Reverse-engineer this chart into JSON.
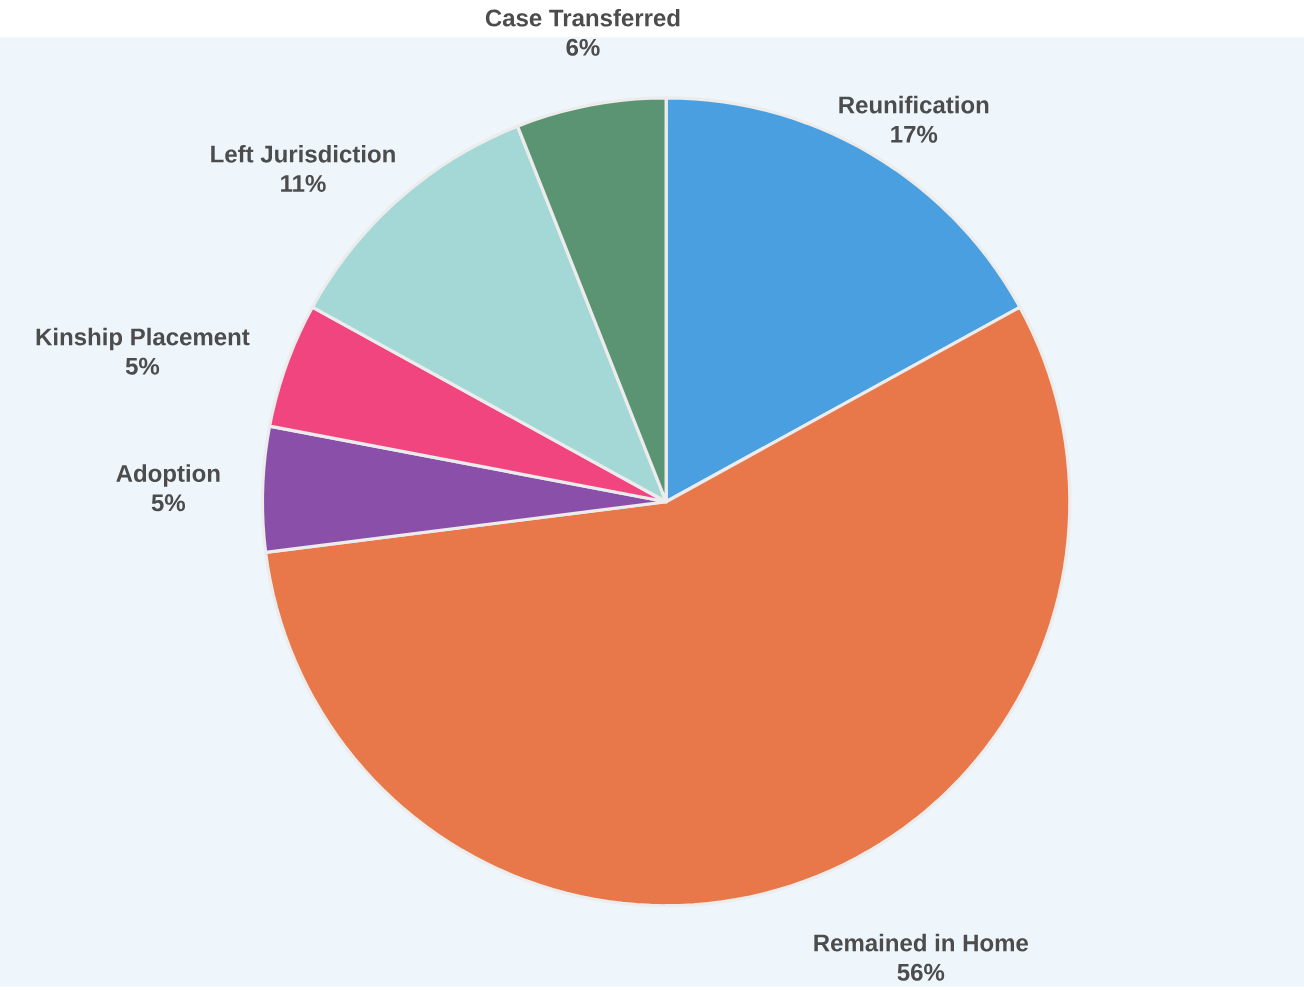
{
  "chart_data": {
    "type": "pie",
    "categories": [
      "Reunification",
      "Remained in Home",
      "Adoption",
      "Kinship Placement",
      "Left Jurisdiction",
      "Case Transferred"
    ],
    "values": [
      17,
      56,
      5,
      5,
      11,
      6
    ],
    "value_labels": [
      "17%",
      "56%",
      "5%",
      "5%",
      "11%",
      "6%"
    ],
    "colors": [
      "#4a9fe0",
      "#e8774a",
      "#8a4fa8",
      "#f0457e",
      "#a3d8d6",
      "#5a9472"
    ]
  }
}
